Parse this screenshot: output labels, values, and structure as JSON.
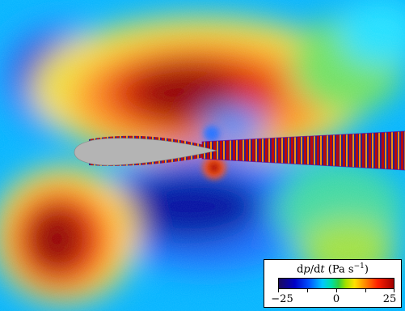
{
  "colorbar": {
    "title_prefix": "d",
    "title_var": "p",
    "title_mid": "/d",
    "title_var2": "t",
    "title_unit": " (Pa s",
    "title_exp": "−1",
    "title_close": ")",
    "ticks": [
      "−25",
      "0",
      "25"
    ],
    "colors": [
      "#1a0a5e",
      "#0000c8",
      "#0050ff",
      "#00c8ff",
      "#30d040",
      "#ffe000",
      "#ff8000",
      "#ff2000",
      "#a00000"
    ]
  },
  "field": {
    "background_color": "#00a8ff",
    "airfoil_color": "#b4b4b4"
  }
}
